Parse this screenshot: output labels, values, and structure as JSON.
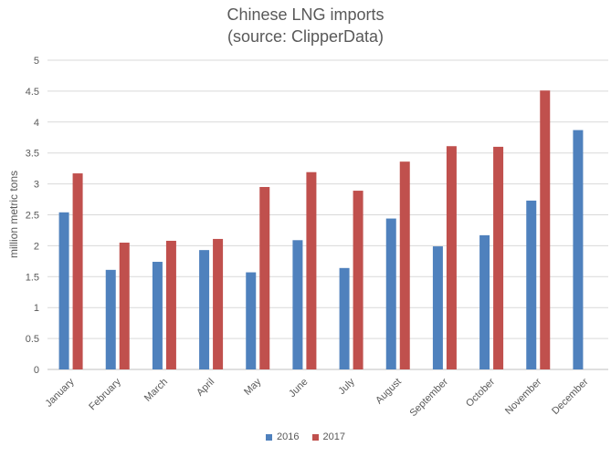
{
  "chart_data": {
    "type": "bar",
    "title": "Chinese LNG imports",
    "subtitle": "(source: ClipperData)",
    "xlabel": "",
    "ylabel": "million metric tons",
    "ylim": [
      0,
      5
    ],
    "yticks": [
      "0",
      "0.5",
      "1",
      "1.5",
      "2",
      "2.5",
      "3",
      "3.5",
      "4",
      "4.5",
      "5"
    ],
    "grid": true,
    "legend_position": "bottom",
    "categories": [
      "January",
      "February",
      "March",
      "April",
      "May",
      "June",
      "July",
      "August",
      "September",
      "October",
      "November",
      "December"
    ],
    "series": [
      {
        "name": "2016",
        "color": "#4F81BD",
        "values": [
          2.54,
          1.61,
          1.74,
          1.93,
          1.57,
          2.09,
          1.64,
          2.44,
          1.99,
          2.17,
          2.73,
          3.87
        ]
      },
      {
        "name": "2017",
        "color": "#C0504D",
        "values": [
          3.17,
          2.05,
          2.08,
          2.11,
          2.95,
          3.19,
          2.89,
          3.36,
          3.61,
          3.6,
          4.51,
          null
        ]
      }
    ]
  }
}
